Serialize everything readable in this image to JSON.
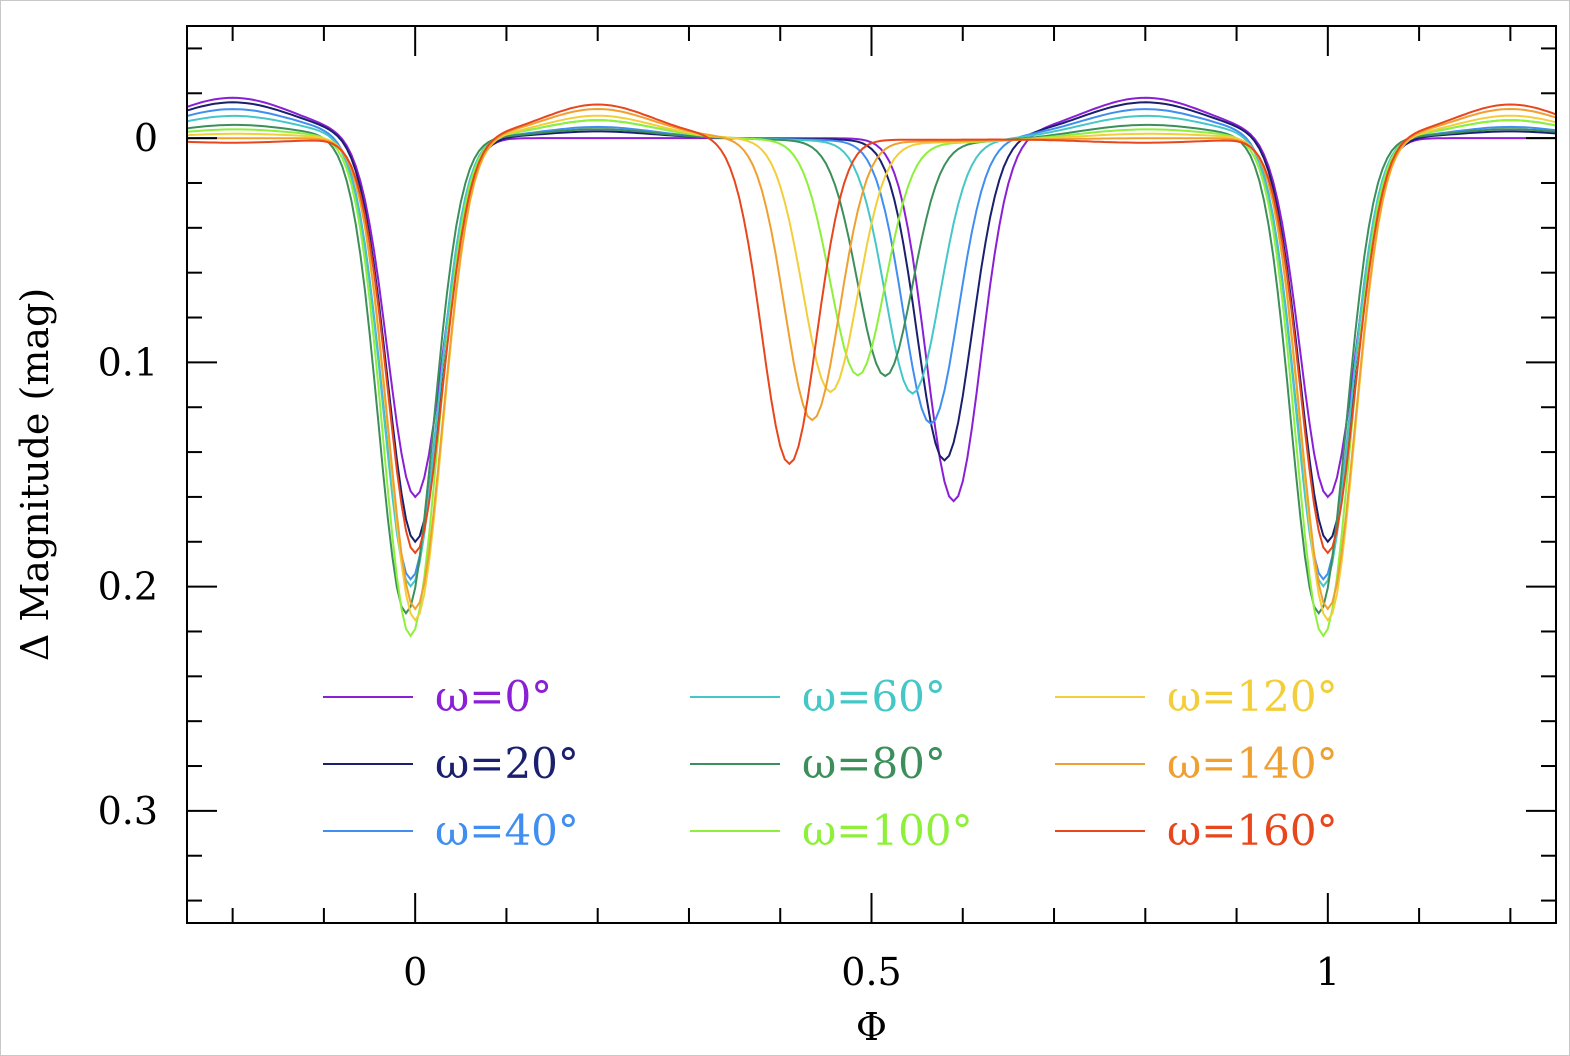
{
  "chart_data": {
    "type": "line",
    "title": "",
    "xlabel": "Φ",
    "ylabel": "Δ Magnitude (mag)",
    "xlim": [
      -0.25,
      1.25
    ],
    "ylim": [
      -0.05,
      0.35
    ],
    "y_inverted": true,
    "x_ticks": [
      {
        "value": 0,
        "label": "0"
      },
      {
        "value": 0.5,
        "label": "0.5"
      },
      {
        "value": 1,
        "label": "1"
      }
    ],
    "y_ticks": [
      {
        "value": 0,
        "label": "0"
      },
      {
        "value": 0.1,
        "label": "0.1"
      },
      {
        "value": 0.2,
        "label": "0.2"
      },
      {
        "value": 0.3,
        "label": "0.3"
      }
    ],
    "grid": false,
    "legend_position": "bottom-center",
    "series": [
      {
        "name": "ω=0°",
        "color": "#8a1fd6",
        "omega": 0,
        "primary_depth": 0.16,
        "primary_center": 0.0,
        "secondary_depth": 0.162,
        "secondary_center": 0.59,
        "secondary_halfwidth": 0.06,
        "hump1": 0.018,
        "hump2": 0.0
      },
      {
        "name": "ω=20°",
        "color": "#1a1f6e",
        "omega": 20,
        "primary_depth": 0.18,
        "primary_center": 0.0,
        "secondary_depth": 0.143,
        "secondary_center": 0.58,
        "secondary_halfwidth": 0.06,
        "hump1": 0.016,
        "hump2": 0.003
      },
      {
        "name": "ω=40°",
        "color": "#3f8ef0",
        "omega": 40,
        "primary_depth": 0.197,
        "primary_center": -0.005,
        "secondary_depth": 0.126,
        "secondary_center": 0.565,
        "secondary_halfwidth": 0.06,
        "hump1": 0.013,
        "hump2": 0.005
      },
      {
        "name": "ω=60°",
        "color": "#45c7c8",
        "omega": 60,
        "primary_depth": 0.2,
        "primary_center": -0.005,
        "secondary_depth": 0.112,
        "secondary_center": 0.545,
        "secondary_halfwidth": 0.06,
        "hump1": 0.01,
        "hump2": 0.008
      },
      {
        "name": "ω=80°",
        "color": "#3c8f5a",
        "omega": 80,
        "primary_depth": 0.212,
        "primary_center": -0.01,
        "secondary_depth": 0.104,
        "secondary_center": 0.515,
        "secondary_halfwidth": 0.06,
        "hump1": 0.006,
        "hump2": 0.004
      },
      {
        "name": "ω=100°",
        "color": "#8ef03a",
        "omega": 100,
        "primary_depth": 0.222,
        "primary_center": -0.005,
        "secondary_depth": 0.104,
        "secondary_center": 0.485,
        "secondary_halfwidth": 0.06,
        "hump1": 0.004,
        "hump2": 0.008
      },
      {
        "name": "ω=120°",
        "color": "#f2cf3a",
        "omega": 120,
        "primary_depth": 0.215,
        "primary_center": 0.0,
        "secondary_depth": 0.112,
        "secondary_center": 0.455,
        "secondary_halfwidth": 0.06,
        "hump1": 0.002,
        "hump2": 0.01
      },
      {
        "name": "ω=140°",
        "color": "#f0a030",
        "omega": 140,
        "primary_depth": 0.21,
        "primary_center": 0.0,
        "secondary_depth": 0.125,
        "secondary_center": 0.435,
        "secondary_halfwidth": 0.06,
        "hump1": 0.0,
        "hump2": 0.013
      },
      {
        "name": "ω=160°",
        "color": "#e8461c",
        "omega": 160,
        "primary_depth": 0.185,
        "primary_center": 0.0,
        "secondary_depth": 0.145,
        "secondary_center": 0.41,
        "secondary_halfwidth": 0.06,
        "hump1": -0.002,
        "hump2": 0.015
      }
    ]
  }
}
